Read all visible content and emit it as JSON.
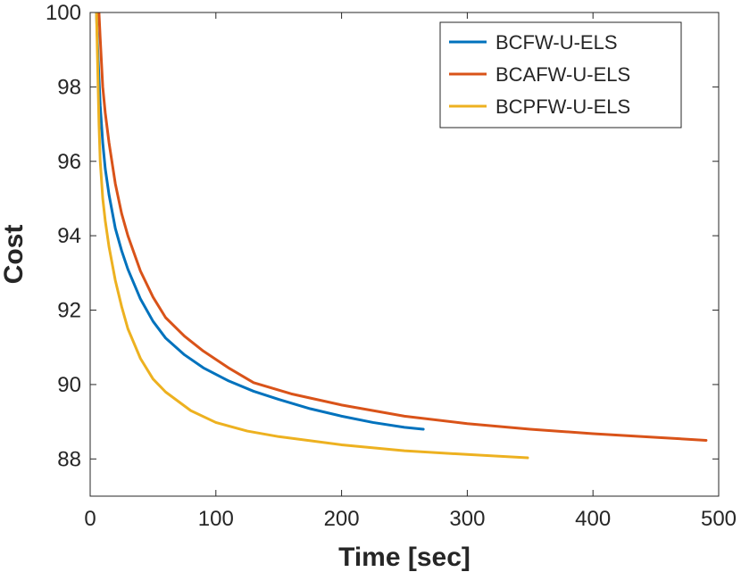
{
  "chart_data": {
    "type": "line",
    "title": "",
    "xlabel": "Time [sec]",
    "ylabel": "Cost",
    "xlim": [
      0,
      500
    ],
    "ylim": [
      87,
      100
    ],
    "xticks": [
      "0",
      "100",
      "200",
      "300",
      "400",
      "500"
    ],
    "yticks": [
      "88",
      "90",
      "92",
      "94",
      "96",
      "98",
      "100"
    ],
    "grid": false,
    "legend_position": "top-right",
    "series": [
      {
        "name": "BCFW-U-ELS",
        "color": "#0072bd",
        "x": [
          5,
          6,
          8,
          10,
          12,
          15,
          20,
          25,
          30,
          40,
          50,
          60,
          75,
          90,
          110,
          130,
          150,
          175,
          200,
          225,
          250,
          265
        ],
        "y": [
          100,
          99,
          97.5,
          96.5,
          95.8,
          95.1,
          94.2,
          93.6,
          93.1,
          92.3,
          91.7,
          91.25,
          90.8,
          90.45,
          90.1,
          89.82,
          89.6,
          89.35,
          89.15,
          88.98,
          88.85,
          88.8
        ]
      },
      {
        "name": "BCAFW-U-ELS",
        "color": "#d95319",
        "x": [
          7,
          8,
          10,
          12,
          15,
          20,
          25,
          30,
          40,
          50,
          60,
          75,
          90,
          110,
          130,
          160,
          200,
          250,
          300,
          350,
          400,
          450,
          490
        ],
        "y": [
          100,
          99.3,
          98,
          97.3,
          96.5,
          95.4,
          94.6,
          94,
          93.05,
          92.35,
          91.8,
          91.3,
          90.9,
          90.45,
          90.05,
          89.75,
          89.45,
          89.15,
          88.95,
          88.8,
          88.68,
          88.58,
          88.5
        ]
      },
      {
        "name": "BCPFW-U-ELS",
        "color": "#edb120",
        "x": [
          5,
          6,
          7,
          8,
          10,
          12,
          15,
          20,
          25,
          30,
          40,
          50,
          60,
          80,
          100,
          125,
          150,
          200,
          250,
          300,
          348
        ],
        "y": [
          100,
          98.5,
          97,
          96,
          95,
          94.4,
          93.7,
          92.8,
          92.1,
          91.5,
          90.7,
          90.15,
          89.8,
          89.3,
          88.98,
          88.75,
          88.6,
          88.38,
          88.22,
          88.12,
          88.03
        ]
      }
    ]
  }
}
